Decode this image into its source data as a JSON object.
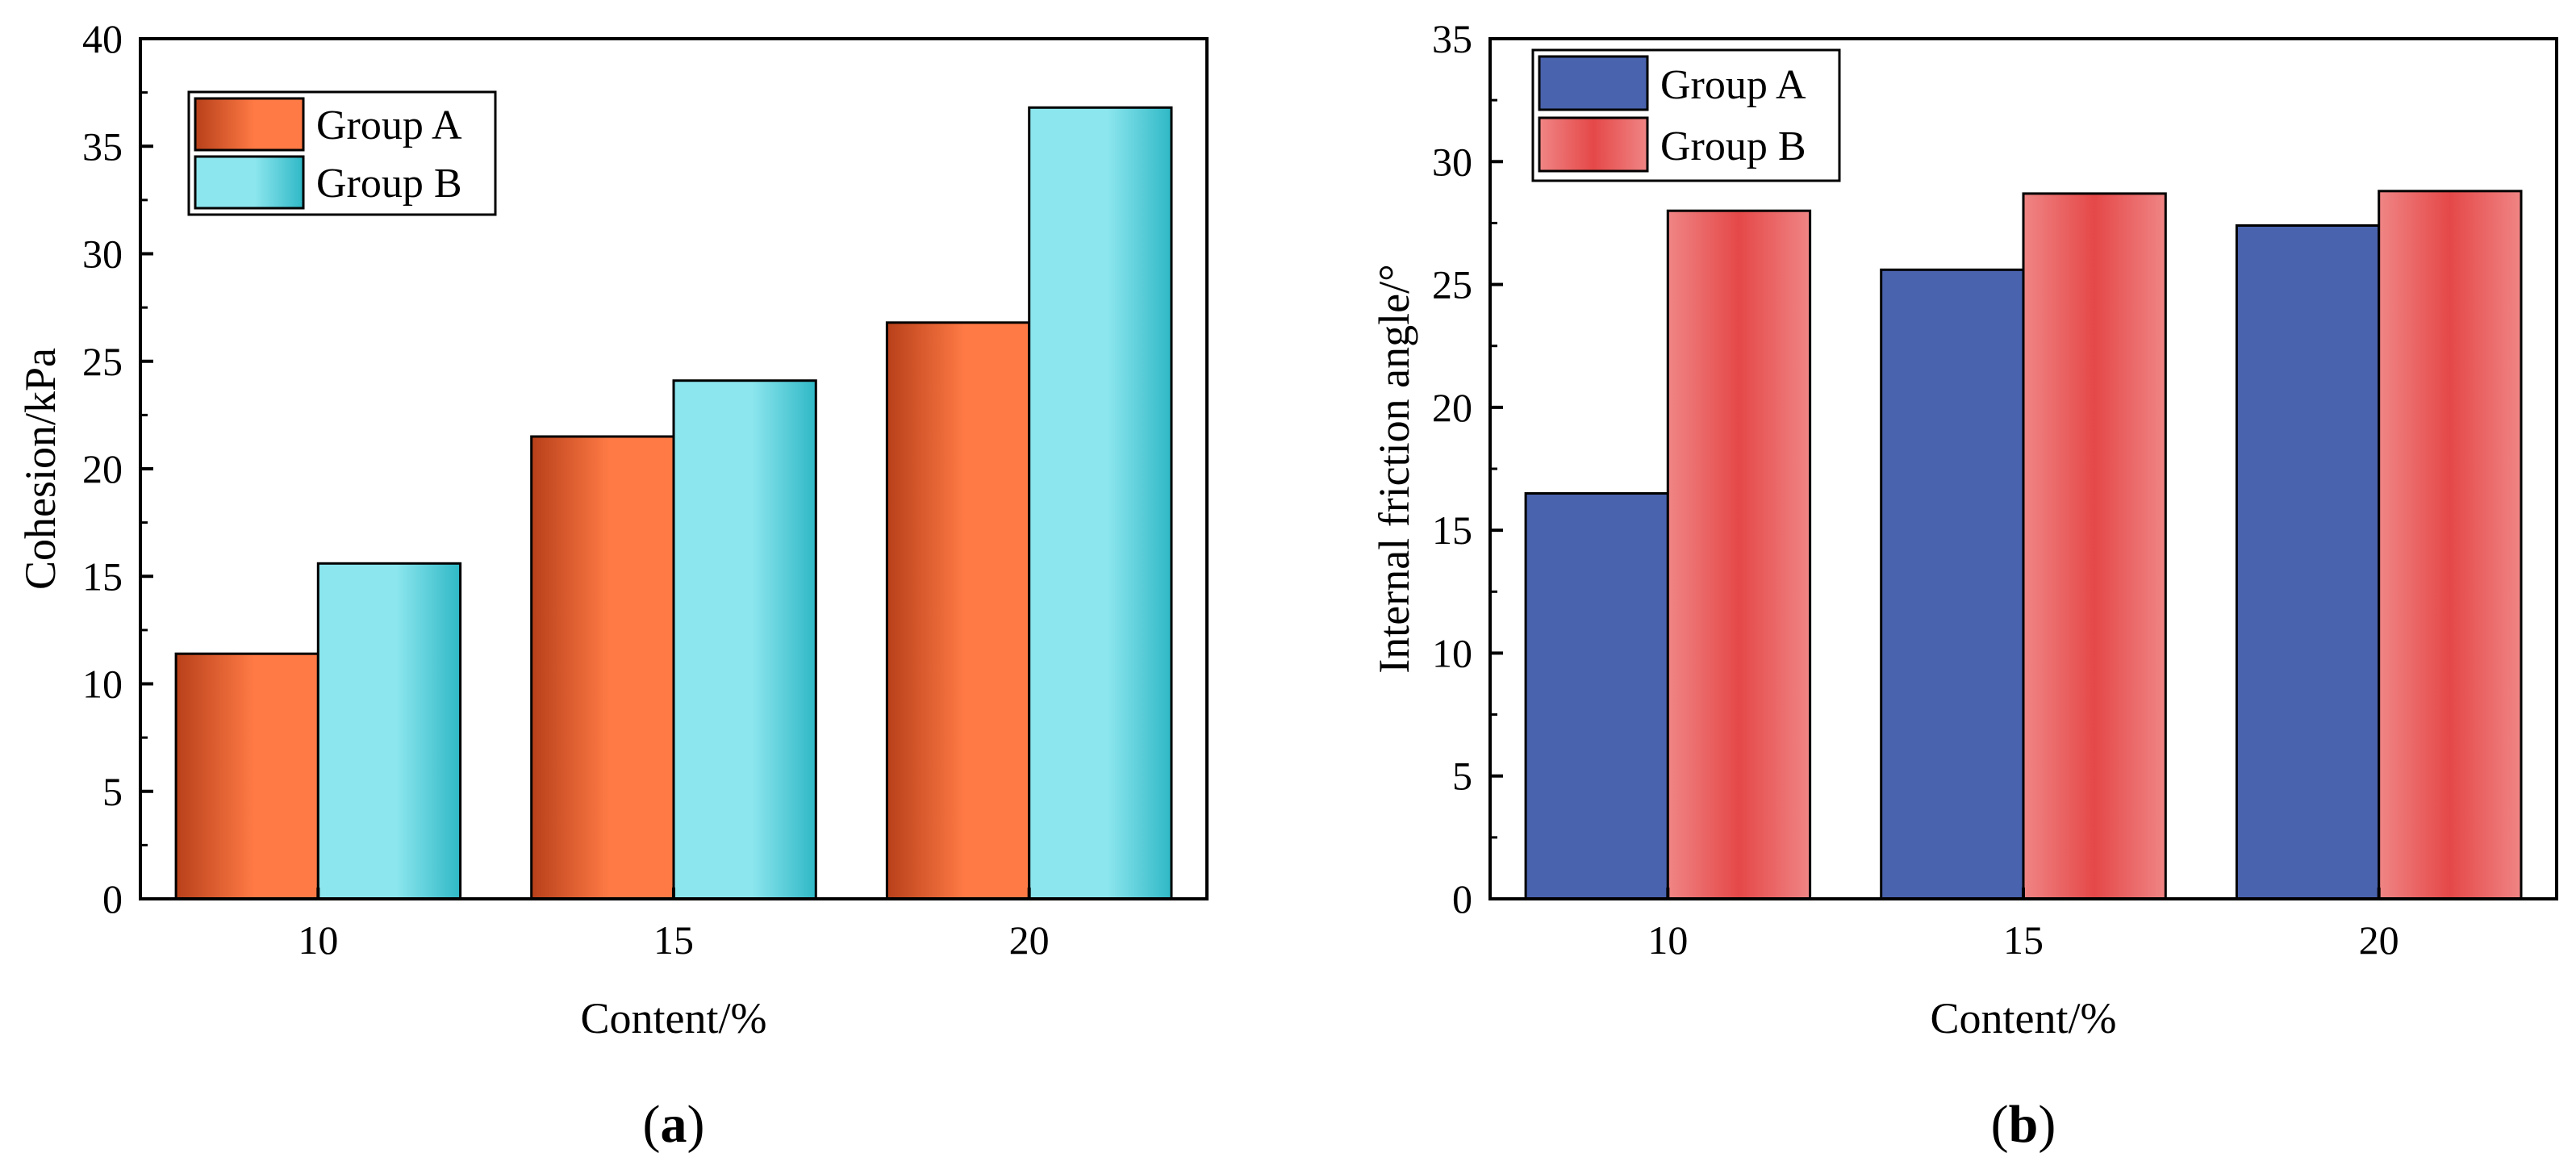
{
  "colors": {
    "a_group_a_edge": "#b8401a",
    "a_group_a_mid": "#ff7a45",
    "a_group_b_edge": "#2fb8c6",
    "a_group_b_mid": "#8ce6ee",
    "b_group_a_fill": "#4a63ae",
    "b_group_b_edge": "#e54848",
    "b_group_b_light": "#f08585"
  },
  "chart_data": [
    {
      "type": "bar",
      "panel_label": "a",
      "title": "",
      "xlabel": "Content/%",
      "ylabel": "Cohesion/kPa",
      "categories": [
        "10",
        "15",
        "20"
      ],
      "ylim": [
        0,
        40
      ],
      "yticks": [
        0,
        5,
        10,
        15,
        20,
        25,
        30,
        35,
        40
      ],
      "legend_position": "top-left",
      "grid": false,
      "series": [
        {
          "name": "Group A",
          "values": [
            11.4,
            21.5,
            26.8
          ]
        },
        {
          "name": "Group B",
          "values": [
            15.6,
            24.1,
            36.8
          ]
        }
      ]
    },
    {
      "type": "bar",
      "panel_label": "b",
      "title": "",
      "xlabel": "Content/%",
      "ylabel": "Internal friction angle/°",
      "categories": [
        "10",
        "15",
        "20"
      ],
      "ylim": [
        0,
        35
      ],
      "yticks": [
        0,
        5,
        10,
        15,
        20,
        25,
        30,
        35
      ],
      "legend_position": "top-left",
      "grid": false,
      "series": [
        {
          "name": "Group A",
          "values": [
            16.5,
            25.6,
            27.4
          ]
        },
        {
          "name": "Group B",
          "values": [
            28.0,
            28.7,
            28.8
          ]
        }
      ]
    }
  ]
}
